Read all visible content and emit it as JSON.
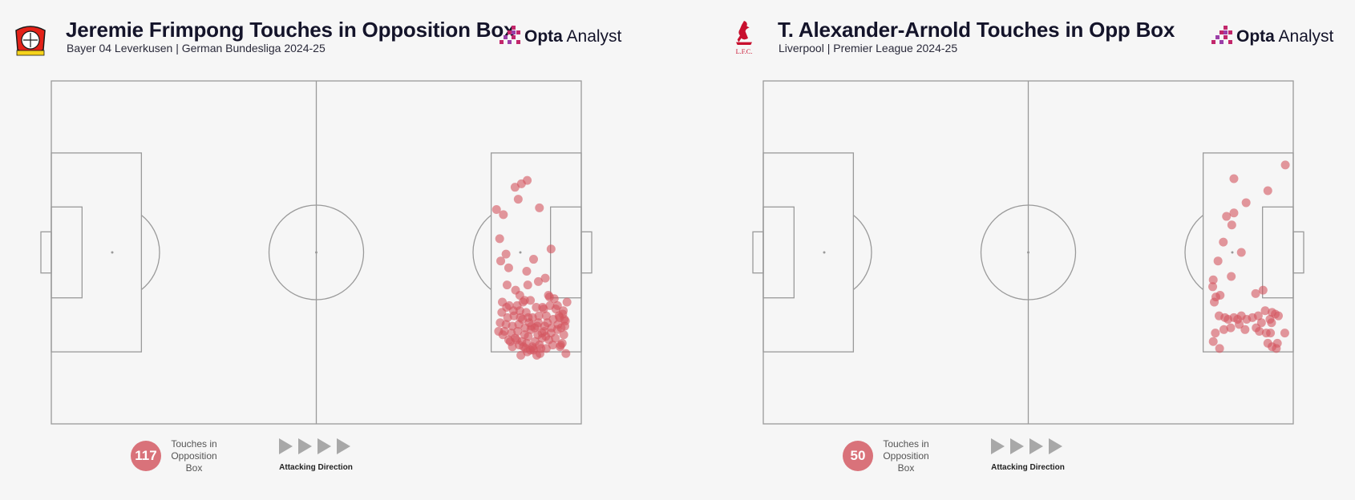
{
  "panels": [
    {
      "title": "Jeremie Frimpong Touches in Opposition Box",
      "subtitle": "Bayer 04 Leverkusen | German Bundesliga 2024-25",
      "brand": {
        "bold": "Opta",
        "light": " Analyst"
      },
      "club_logo": "bayer-leverkusen-crest-icon",
      "touch_count": "117",
      "touch_label": "Touches in Opposition Box",
      "direction_label": "Attacking Direction"
    },
    {
      "title": "T. Alexander-Arnold Touches in Opp Box",
      "subtitle": "Liverpool | Premier League 2024-25",
      "brand": {
        "bold": "Opta",
        "light": " Analyst"
      },
      "club_logo": "liverpool-lfc-crest-icon",
      "club_logo_text": "L.F.C.",
      "touch_count": "50",
      "touch_label": "Touches in Opposition Box",
      "direction_label": "Attacking Direction"
    }
  ],
  "colors": {
    "touch": "#d4555f",
    "badge": "#d9727a",
    "pitch_line": "#9a9a9a",
    "title": "#14142a",
    "brand_accent": "#c2276b"
  },
  "chart_data": [
    {
      "type": "scatter",
      "title": "Jeremie Frimpong Touches in Opposition Box",
      "xlim": [
        0,
        100
      ],
      "ylim": [
        0,
        100
      ],
      "x": [
        89.8,
        87.5,
        84.0,
        85.3,
        84.6,
        84.8,
        88.7,
        88.1,
        92.1,
        94.3,
        91.0,
        89.7,
        85.8,
        86.3,
        87.6,
        88.4,
        89.9,
        91.9,
        93.2,
        93.8,
        85.1,
        86.4,
        87.9,
        89.0,
        90.4,
        91.5,
        92.7,
        94.1,
        95.5,
        96.6,
        97.3,
        85.0,
        86.1,
        87.3,
        88.5,
        89.6,
        90.8,
        92.0,
        93.4,
        94.7,
        95.9,
        96.8,
        84.7,
        85.8,
        87.0,
        88.2,
        89.4,
        90.6,
        91.9,
        93.1,
        94.4,
        95.6,
        96.9,
        85.5,
        86.8,
        88.0,
        89.3,
        90.5,
        91.8,
        93.0,
        94.3,
        95.5,
        96.7,
        86.3,
        87.5,
        88.8,
        90.0,
        91.3,
        92.6,
        93.9,
        95.1,
        96.4,
        87.0,
        88.3,
        89.5,
        90.8,
        92.1,
        93.4,
        94.6,
        96.0,
        89.8,
        91.0,
        92.2,
        90.4,
        91.6,
        97.0,
        85.2,
        86.6,
        88.9,
        90.2,
        92.9,
        94.9,
        96.2,
        84.4,
        87.2,
        91.2,
        93.6,
        89.1,
        88.6,
        95.2,
        97.1,
        86.0,
        92.4,
        90.9,
        91.7,
        89.3,
        90.0,
        94.0,
        96.1,
        85.9,
        87.8,
        88.4,
        93.3,
        95.8,
        96.5,
        89.7,
        92.6
      ],
      "y": [
        71.0,
        69.0,
        62.5,
        61.0,
        54.0,
        47.5,
        70.0,
        65.5,
        63.0,
        51.0,
        48.0,
        44.5,
        49.5,
        45.5,
        39.0,
        37.5,
        40.5,
        41.5,
        42.5,
        37.5,
        35.5,
        34.5,
        34.5,
        35.5,
        36.0,
        34.0,
        34.0,
        34.5,
        34.5,
        33.0,
        35.5,
        32.5,
        31.0,
        31.5,
        31.0,
        32.5,
        31.0,
        31.5,
        31.5,
        30.5,
        31.0,
        30.5,
        29.5,
        29.0,
        28.5,
        29.0,
        28.0,
        28.5,
        29.5,
        28.5,
        28.0,
        29.0,
        28.5,
        27.0,
        26.5,
        27.0,
        26.0,
        27.5,
        26.0,
        27.0,
        26.5,
        27.5,
        26.0,
        24.5,
        25.0,
        24.0,
        25.5,
        24.0,
        25.0,
        24.5,
        25.0,
        23.5,
        22.5,
        23.0,
        22.0,
        22.5,
        23.0,
        22.0,
        23.0,
        22.5,
        21.0,
        21.5,
        20.5,
        21.5,
        20.0,
        30.0,
        26.0,
        24.0,
        30.5,
        29.5,
        33.5,
        36.5,
        28.0,
        27.0,
        33.0,
        28.0,
        29.5,
        22.5,
        20.0,
        33.5,
        20.5,
        40.5,
        22.0,
        22.0,
        28.5,
        36.0,
        31.0,
        37.0,
        23.0,
        34.0,
        24.5,
        33.0,
        25.5,
        31.5,
        32.0,
        23.5,
        26.5
      ]
    },
    {
      "type": "scatter",
      "title": "T. Alexander-Arnold Touches in Opp Box",
      "xlim": [
        0,
        100
      ],
      "ylim": [
        0,
        100
      ],
      "x": [
        98.5,
        88.8,
        95.2,
        91.1,
        87.4,
        88.8,
        88.4,
        86.8,
        90.2,
        85.8,
        88.3,
        84.9,
        86.2,
        84.8,
        85.4,
        85.1,
        86.0,
        87.1,
        87.7,
        88.8,
        89.5,
        90.2,
        91.2,
        92.3,
        93.4,
        94.7,
        95.6,
        96.6,
        97.2,
        96.0,
        94.0,
        93.0,
        90.9,
        89.8,
        88.2,
        86.9,
        85.3,
        84.9,
        86.1,
        93.6,
        94.9,
        95.7,
        97.0,
        95.2,
        96.0,
        92.9,
        94.3,
        95.9,
        96.8,
        98.4
      ],
      "y": [
        75.5,
        71.5,
        68.0,
        64.5,
        60.5,
        61.5,
        58.0,
        53.0,
        50.0,
        47.5,
        43.0,
        42.0,
        37.5,
        40.0,
        37.0,
        35.5,
        31.5,
        31.0,
        30.5,
        31.0,
        30.5,
        31.5,
        30.5,
        31.0,
        31.5,
        33.0,
        30.5,
        32.0,
        31.5,
        32.5,
        29.5,
        28.0,
        27.5,
        29.0,
        28.0,
        27.5,
        26.5,
        24.0,
        22.0,
        27.0,
        26.5,
        26.5,
        23.5,
        23.5,
        22.5,
        38.0,
        39.0,
        29.5,
        22.0,
        26.5
      ]
    }
  ]
}
